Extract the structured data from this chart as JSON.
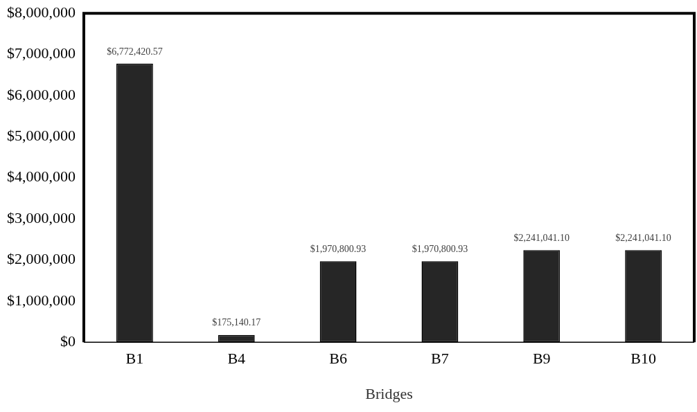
{
  "chart_data": {
    "type": "bar",
    "xlabel": "Bridges",
    "categories": [
      "B1",
      "B4",
      "B6",
      "B7",
      "B9",
      "B10"
    ],
    "values": [
      6772420.57,
      175140.17,
      1970800.93,
      1970800.93,
      2241041.1,
      2241041.1
    ],
    "value_labels": [
      "$6,772,420.57",
      "$175,140.17",
      "$1,970,800.93",
      "$1,970,800.93",
      "$2,241,041.10",
      "$2,241,041.10"
    ],
    "color": "#262626",
    "ylim": [
      0,
      8000000
    ],
    "yticks": [
      {
        "value": 0,
        "label": "$0"
      },
      {
        "value": 1000000,
        "label": "$1,000,000"
      },
      {
        "value": 2000000,
        "label": "$2,000,000"
      },
      {
        "value": 3000000,
        "label": "$3,000,000"
      },
      {
        "value": 4000000,
        "label": "$4,000,000"
      },
      {
        "value": 5000000,
        "label": "$5,000,000"
      },
      {
        "value": 6000000,
        "label": "$6,000,000"
      },
      {
        "value": 7000000,
        "label": "$7,000,000"
      },
      {
        "value": 8000000,
        "label": "$8,000,000"
      }
    ],
    "grid": false,
    "legend": false
  }
}
